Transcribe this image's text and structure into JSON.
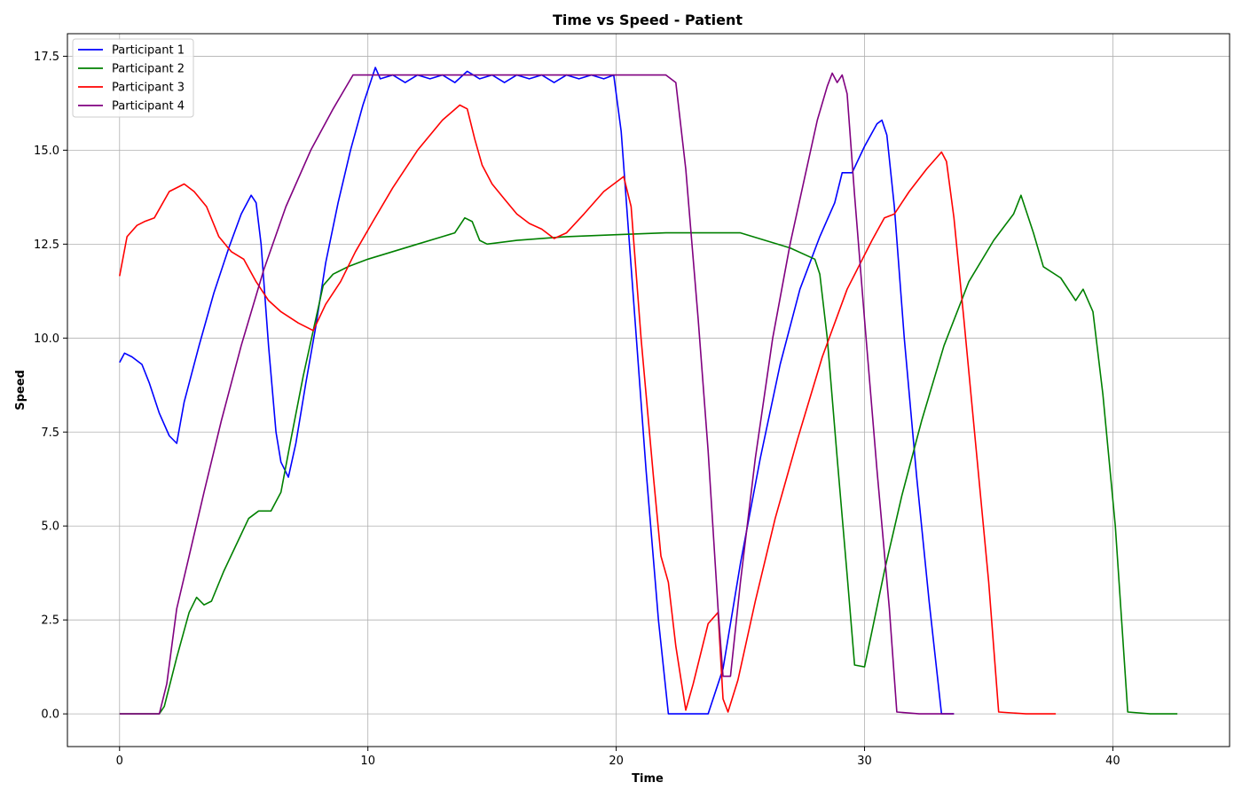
{
  "chart_data": {
    "type": "line",
    "title": "Time vs Speed - Patient",
    "xlabel": "Time",
    "ylabel": "Speed",
    "xlim": [
      -2.1,
      44.7
    ],
    "ylim": [
      -0.87,
      18.1
    ],
    "xticks": [
      0,
      10,
      20,
      30,
      40
    ],
    "yticks": [
      0.0,
      2.5,
      5.0,
      7.5,
      10.0,
      12.5,
      15.0,
      17.5
    ],
    "xtick_labels": [
      "0",
      "10",
      "20",
      "30",
      "40"
    ],
    "ytick_labels": [
      "0.0",
      "2.5",
      "5.0",
      "7.5",
      "10.0",
      "12.5",
      "15.0",
      "17.5"
    ],
    "grid": true,
    "legend_position": "top-left",
    "series": [
      {
        "name": "Participant 1",
        "color": "#0000ff",
        "points": [
          [
            0,
            9.35
          ],
          [
            0.2,
            9.6
          ],
          [
            0.5,
            9.5
          ],
          [
            0.9,
            9.3
          ],
          [
            1.2,
            8.8
          ],
          [
            1.6,
            8.0
          ],
          [
            2.0,
            7.4
          ],
          [
            2.3,
            7.2
          ],
          [
            2.6,
            8.3
          ],
          [
            3.2,
            9.8
          ],
          [
            3.8,
            11.2
          ],
          [
            4.4,
            12.4
          ],
          [
            4.9,
            13.3
          ],
          [
            5.3,
            13.8
          ],
          [
            5.5,
            13.6
          ],
          [
            5.7,
            12.5
          ],
          [
            6.0,
            9.8
          ],
          [
            6.3,
            7.5
          ],
          [
            6.5,
            6.7
          ],
          [
            6.8,
            6.3
          ],
          [
            7.1,
            7.2
          ],
          [
            7.5,
            8.8
          ],
          [
            7.9,
            10.3
          ],
          [
            8.3,
            12.0
          ],
          [
            8.8,
            13.6
          ],
          [
            9.3,
            15.0
          ],
          [
            9.8,
            16.2
          ],
          [
            10.1,
            16.8
          ],
          [
            10.3,
            17.2
          ],
          [
            10.5,
            16.9
          ],
          [
            11,
            17.0
          ],
          [
            11.5,
            16.8
          ],
          [
            12,
            17.0
          ],
          [
            12.5,
            16.9
          ],
          [
            13,
            17.0
          ],
          [
            13.5,
            16.8
          ],
          [
            14,
            17.1
          ],
          [
            14.5,
            16.9
          ],
          [
            15,
            17.0
          ],
          [
            15.5,
            16.8
          ],
          [
            16,
            17.0
          ],
          [
            16.5,
            16.9
          ],
          [
            17,
            17.0
          ],
          [
            17.5,
            16.8
          ],
          [
            18,
            17.0
          ],
          [
            18.5,
            16.9
          ],
          [
            19,
            17.0
          ],
          [
            19.5,
            16.9
          ],
          [
            19.9,
            17.0
          ],
          [
            20.2,
            15.5
          ],
          [
            20.7,
            11.0
          ],
          [
            21.2,
            6.5
          ],
          [
            21.7,
            2.5
          ],
          [
            22.1,
            0.0
          ],
          [
            23.0,
            0.0
          ],
          [
            23.7,
            0.0
          ],
          [
            24.3,
            1.2
          ],
          [
            25.0,
            4.0
          ],
          [
            25.8,
            6.8
          ],
          [
            26.6,
            9.3
          ],
          [
            27.4,
            11.3
          ],
          [
            28.2,
            12.7
          ],
          [
            28.8,
            13.6
          ],
          [
            29.1,
            14.4
          ],
          [
            29.5,
            14.4
          ],
          [
            30.0,
            15.1
          ],
          [
            30.5,
            15.7
          ],
          [
            30.7,
            15.8
          ],
          [
            30.9,
            15.4
          ],
          [
            31.2,
            13.5
          ],
          [
            31.6,
            10.0
          ],
          [
            32.1,
            6.3
          ],
          [
            32.6,
            3.0
          ],
          [
            33.1,
            0.0
          ],
          [
            33.6,
            0.0
          ]
        ]
      },
      {
        "name": "Participant 2",
        "color": "#008000",
        "points": [
          [
            0,
            0.0
          ],
          [
            1.6,
            0.0
          ],
          [
            1.8,
            0.2
          ],
          [
            2.3,
            1.5
          ],
          [
            2.8,
            2.7
          ],
          [
            3.1,
            3.1
          ],
          [
            3.4,
            2.9
          ],
          [
            3.7,
            3.0
          ],
          [
            4.2,
            3.8
          ],
          [
            4.7,
            4.5
          ],
          [
            5.2,
            5.2
          ],
          [
            5.6,
            5.4
          ],
          [
            6.1,
            5.4
          ],
          [
            6.5,
            5.9
          ],
          [
            6.9,
            7.3
          ],
          [
            7.4,
            9.0
          ],
          [
            7.9,
            10.5
          ],
          [
            8.2,
            11.4
          ],
          [
            8.6,
            11.7
          ],
          [
            9.2,
            11.9
          ],
          [
            10,
            12.1
          ],
          [
            11,
            12.3
          ],
          [
            12,
            12.5
          ],
          [
            13,
            12.7
          ],
          [
            13.5,
            12.8
          ],
          [
            13.9,
            13.2
          ],
          [
            14.2,
            13.1
          ],
          [
            14.5,
            12.6
          ],
          [
            14.8,
            12.5
          ],
          [
            16,
            12.6
          ],
          [
            18,
            12.7
          ],
          [
            20,
            12.75
          ],
          [
            22,
            12.8
          ],
          [
            24,
            12.8
          ],
          [
            25,
            12.8
          ],
          [
            26,
            12.6
          ],
          [
            27,
            12.4
          ],
          [
            28.0,
            12.1
          ],
          [
            28.2,
            11.7
          ],
          [
            28.5,
            10.0
          ],
          [
            28.9,
            6.8
          ],
          [
            29.3,
            3.7
          ],
          [
            29.6,
            1.3
          ],
          [
            30.0,
            1.25
          ],
          [
            30.3,
            2.2
          ],
          [
            30.8,
            3.8
          ],
          [
            31.5,
            5.8
          ],
          [
            32.3,
            7.8
          ],
          [
            33.2,
            9.8
          ],
          [
            34.2,
            11.5
          ],
          [
            35.2,
            12.6
          ],
          [
            36.0,
            13.3
          ],
          [
            36.3,
            13.8
          ],
          [
            36.8,
            12.8
          ],
          [
            37.2,
            11.9
          ],
          [
            37.9,
            11.6
          ],
          [
            38.5,
            11.0
          ],
          [
            38.8,
            11.3
          ],
          [
            39.2,
            10.7
          ],
          [
            39.6,
            8.5
          ],
          [
            40.1,
            5.0
          ],
          [
            40.6,
            0.05
          ],
          [
            41.5,
            0.0
          ],
          [
            42.6,
            0.0
          ]
        ]
      },
      {
        "name": "Participant 3",
        "color": "#ff0000",
        "points": [
          [
            0,
            11.65
          ],
          [
            0.3,
            12.7
          ],
          [
            0.7,
            13.0
          ],
          [
            1.0,
            13.1
          ],
          [
            1.4,
            13.2
          ],
          [
            2.0,
            13.9
          ],
          [
            2.6,
            14.1
          ],
          [
            3.0,
            13.9
          ],
          [
            3.5,
            13.5
          ],
          [
            4.0,
            12.7
          ],
          [
            4.5,
            12.3
          ],
          [
            5.0,
            12.1
          ],
          [
            5.5,
            11.5
          ],
          [
            6.0,
            11.0
          ],
          [
            6.5,
            10.7
          ],
          [
            7.2,
            10.4
          ],
          [
            7.8,
            10.2
          ],
          [
            8.3,
            10.9
          ],
          [
            8.9,
            11.5
          ],
          [
            9.5,
            12.3
          ],
          [
            10.2,
            13.1
          ],
          [
            11,
            14.0
          ],
          [
            12,
            15.0
          ],
          [
            13,
            15.8
          ],
          [
            13.7,
            16.2
          ],
          [
            14.0,
            16.1
          ],
          [
            14.3,
            15.3
          ],
          [
            14.6,
            14.6
          ],
          [
            15.0,
            14.1
          ],
          [
            15.5,
            13.7
          ],
          [
            16,
            13.3
          ],
          [
            16.5,
            13.05
          ],
          [
            17.0,
            12.9
          ],
          [
            17.5,
            12.65
          ],
          [
            18.0,
            12.8
          ],
          [
            18.7,
            13.3
          ],
          [
            19.5,
            13.9
          ],
          [
            20.3,
            14.3
          ],
          [
            20.6,
            13.5
          ],
          [
            21.0,
            10.0
          ],
          [
            21.5,
            6.3
          ],
          [
            21.8,
            4.2
          ],
          [
            22.1,
            3.5
          ],
          [
            22.4,
            1.8
          ],
          [
            22.8,
            0.1
          ],
          [
            23.1,
            0.8
          ],
          [
            23.7,
            2.4
          ],
          [
            24.1,
            2.7
          ],
          [
            24.3,
            0.4
          ],
          [
            24.5,
            0.05
          ],
          [
            24.9,
            0.9
          ],
          [
            25.6,
            3.0
          ],
          [
            26.4,
            5.2
          ],
          [
            27.3,
            7.3
          ],
          [
            28.3,
            9.5
          ],
          [
            29.3,
            11.3
          ],
          [
            30.3,
            12.6
          ],
          [
            30.8,
            13.2
          ],
          [
            31.2,
            13.3
          ],
          [
            31.8,
            13.9
          ],
          [
            32.5,
            14.5
          ],
          [
            33.1,
            14.95
          ],
          [
            33.3,
            14.7
          ],
          [
            33.6,
            13.2
          ],
          [
            34.0,
            10.5
          ],
          [
            34.5,
            7.0
          ],
          [
            35.0,
            3.5
          ],
          [
            35.4,
            0.05
          ],
          [
            36.5,
            0.0
          ],
          [
            37.7,
            0.0
          ]
        ]
      },
      {
        "name": "Participant 4",
        "color": "#800080",
        "points": [
          [
            0,
            0.0
          ],
          [
            1.6,
            0.0
          ],
          [
            1.9,
            0.8
          ],
          [
            2.3,
            2.8
          ],
          [
            2.8,
            4.2
          ],
          [
            3.4,
            5.9
          ],
          [
            4.1,
            7.8
          ],
          [
            4.9,
            9.8
          ],
          [
            5.8,
            11.8
          ],
          [
            6.7,
            13.5
          ],
          [
            7.7,
            15.0
          ],
          [
            8.6,
            16.1
          ],
          [
            9.4,
            17.0
          ],
          [
            10,
            17.0
          ],
          [
            11,
            17.0
          ],
          [
            12,
            17.0
          ],
          [
            13,
            17.0
          ],
          [
            14,
            17.0
          ],
          [
            15,
            17.0
          ],
          [
            16,
            17.0
          ],
          [
            17,
            17.0
          ],
          [
            18,
            17.0
          ],
          [
            19,
            17.0
          ],
          [
            20,
            17.0
          ],
          [
            21,
            17.0
          ],
          [
            22,
            17.0
          ],
          [
            22.4,
            16.8
          ],
          [
            22.8,
            14.5
          ],
          [
            23.3,
            10.5
          ],
          [
            23.7,
            7.0
          ],
          [
            24.1,
            2.8
          ],
          [
            24.3,
            1.0
          ],
          [
            24.6,
            1.0
          ],
          [
            25.0,
            3.5
          ],
          [
            25.6,
            6.8
          ],
          [
            26.3,
            10.0
          ],
          [
            27.0,
            12.5
          ],
          [
            27.6,
            14.3
          ],
          [
            28.1,
            15.8
          ],
          [
            28.5,
            16.7
          ],
          [
            28.7,
            17.05
          ],
          [
            28.9,
            16.8
          ],
          [
            29.1,
            17.0
          ],
          [
            29.3,
            16.5
          ],
          [
            29.6,
            13.8
          ],
          [
            30.0,
            10.5
          ],
          [
            30.5,
            6.5
          ],
          [
            31.0,
            2.8
          ],
          [
            31.3,
            0.05
          ],
          [
            32.2,
            0.0
          ],
          [
            33.6,
            0.0
          ]
        ]
      }
    ]
  }
}
